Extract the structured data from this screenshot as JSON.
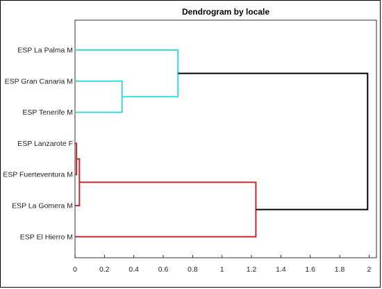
{
  "chart_data": {
    "type": "dendrogram",
    "title": "Dendrogram by locale",
    "xlabel": "",
    "ylabel": "",
    "xlim": [
      0,
      2.05
    ],
    "xticks": [
      0,
      0.2,
      0.4,
      0.6,
      0.8,
      1,
      1.2,
      1.4,
      1.6,
      1.8,
      2
    ],
    "xtick_labels": [
      "0",
      "0.2",
      "0.4",
      "0.6",
      "0.8",
      "1",
      "1.2",
      "1.4",
      "1.6",
      "1.8",
      "2"
    ],
    "grid": false,
    "leaves": [
      "ESP La Palma M",
      "ESP Gran Canaria M",
      "ESP Tenerife M",
      "ESP Lanzarote F",
      "ESP Fuerteventura M",
      "ESP La Gomera M",
      "ESP El Hierro M"
    ],
    "links": [
      {
        "a": 1,
        "b": 2,
        "height": 0.32,
        "color": "#35dbe0"
      },
      {
        "a": 0,
        "b": 7,
        "height": 0.7,
        "color": "#35dbe0"
      },
      {
        "a": 3,
        "b": 4,
        "height": 0.01,
        "color": "#c42a2a"
      },
      {
        "a": 9,
        "b": 5,
        "height": 0.03,
        "color": "#c42a2a"
      },
      {
        "a": 10,
        "b": 6,
        "height": 1.23,
        "color": "#c42a2a"
      },
      {
        "a": 8,
        "b": 11,
        "height": 1.99,
        "color": "#000000"
      }
    ]
  }
}
